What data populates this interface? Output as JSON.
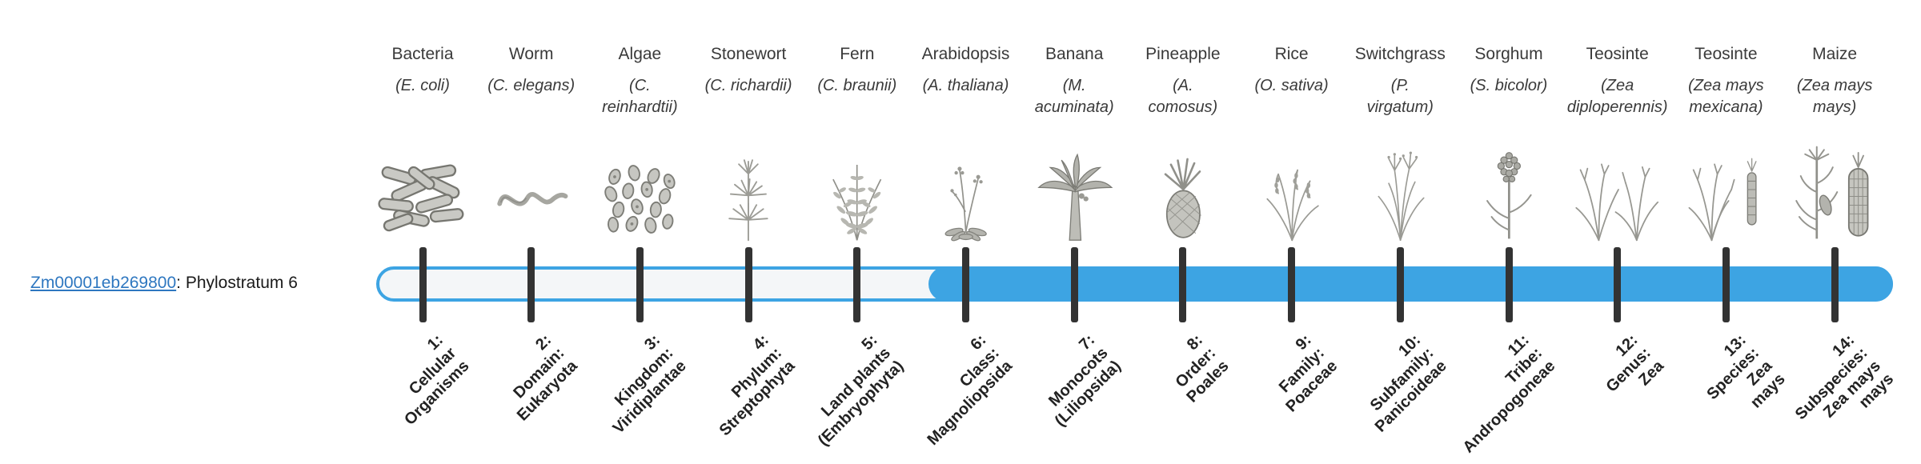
{
  "gene": {
    "id": "Zm00001eb269800",
    "label_suffix": ": Phylostratum 6",
    "phylostratum": 6
  },
  "colors": {
    "bar_fill": "#3da4e3",
    "bar_outline": "#3da4e3",
    "bar_track_bg": "#f4f6f8",
    "tick": "#333333",
    "link_blue": "#2e77c0",
    "name_text": "#3a3a3a",
    "label_text": "#222222"
  },
  "strata": [
    {
      "index": 1,
      "organism": "Bacteria",
      "scientific_lines": [
        "(E. coli)"
      ],
      "icon": "bacteria-illustration",
      "label_lines": [
        "1:",
        "Cellular",
        "Organisms"
      ]
    },
    {
      "index": 2,
      "organism": "Worm",
      "scientific_lines": [
        "(C. elegans)"
      ],
      "icon": "worm-illustration",
      "label_lines": [
        "2:",
        "Domain:",
        "Eukaryota"
      ]
    },
    {
      "index": 3,
      "organism": "Algae",
      "scientific_lines": [
        "(C.",
        "reinhardtii)"
      ],
      "icon": "algae-illustration",
      "label_lines": [
        "3:",
        "Kingdom:",
        "Viridiplantae"
      ]
    },
    {
      "index": 4,
      "organism": "Stonewort",
      "scientific_lines": [
        "(C. richardii)"
      ],
      "icon": "stonewort-illustration",
      "label_lines": [
        "4:",
        "Phylum:",
        "Streptophyta"
      ]
    },
    {
      "index": 5,
      "organism": "Fern",
      "scientific_lines": [
        "(C. braunii)"
      ],
      "icon": "fern-illustration",
      "label_lines": [
        "5:",
        "Land plants",
        "(Embryophyta)"
      ]
    },
    {
      "index": 6,
      "organism": "Arabidopsis",
      "scientific_lines": [
        "(A. thaliana)"
      ],
      "icon": "arabidopsis-illustration",
      "label_lines": [
        "6:",
        "Class:",
        "Magnoliopsida"
      ]
    },
    {
      "index": 7,
      "organism": "Banana",
      "scientific_lines": [
        "(M.",
        "acuminata)"
      ],
      "icon": "banana-illustration",
      "label_lines": [
        "7:",
        "Monocots",
        "(Liliopsida)"
      ]
    },
    {
      "index": 8,
      "organism": "Pineapple",
      "scientific_lines": [
        "(A.",
        "comosus)"
      ],
      "icon": "pineapple-illustration",
      "label_lines": [
        "8:",
        "Order:",
        "Poales"
      ]
    },
    {
      "index": 9,
      "organism": "Rice",
      "scientific_lines": [
        "(O. sativa)"
      ],
      "icon": "rice-illustration",
      "label_lines": [
        "9:",
        "Family:",
        "Poaceae"
      ]
    },
    {
      "index": 10,
      "organism": "Switchgrass",
      "scientific_lines": [
        "(P.",
        "virgatum)"
      ],
      "icon": "switchgrass-illustration",
      "label_lines": [
        "10:",
        "Subfamily:",
        "Panicoideae"
      ]
    },
    {
      "index": 11,
      "organism": "Sorghum",
      "scientific_lines": [
        "(S. bicolor)"
      ],
      "icon": "sorghum-illustration",
      "label_lines": [
        "11:",
        "Tribe:",
        "Andropogoneae"
      ]
    },
    {
      "index": 12,
      "organism": "Teosinte",
      "scientific_lines": [
        "(Zea",
        "diploperennis)"
      ],
      "icon": "teosinte-diploperennis-illustration",
      "label_lines": [
        "12:",
        "Genus:",
        "Zea"
      ]
    },
    {
      "index": 13,
      "organism": "Teosinte",
      "scientific_lines": [
        "(Zea mays",
        "mexicana)"
      ],
      "icon": "teosinte-mexicana-illustration",
      "label_lines": [
        "13:",
        "Species:",
        "Zea",
        "mays"
      ]
    },
    {
      "index": 14,
      "organism": "Maize",
      "scientific_lines": [
        "(Zea mays",
        "mays)"
      ],
      "icon": "maize-illustration",
      "label_lines": [
        "14:",
        "Subspecies:",
        "Zea mays",
        "mays"
      ]
    }
  ],
  "chart_data": {
    "type": "bar",
    "orientation": "horizontal",
    "title": "Zm00001eb269800: Phylostratum 6",
    "categories": [
      "1: Cellular Organisms",
      "2: Domain: Eukaryota",
      "3: Kingdom: Viridiplantae",
      "4: Phylum: Streptophyta",
      "5: Land plants (Embryophyta)",
      "6: Class: Magnoliopsida",
      "7: Monocots (Liliopsida)",
      "8: Order: Poales",
      "9: Family: Poaceae",
      "10: Subfamily: Panicoideae",
      "11: Tribe: Andropogoneae",
      "12: Genus: Zea",
      "13: Species: Zea mays",
      "14: Subspecies: Zea mays mays"
    ],
    "series": [
      {
        "name": "phylostratum bar filled (gene traced back to stratum 6)",
        "values": [
          0,
          0,
          0,
          0,
          0,
          1,
          1,
          1,
          1,
          1,
          1,
          1,
          1,
          1
        ]
      }
    ],
    "representative_organisms": [
      "Bacteria (E. coli)",
      "Worm (C. elegans)",
      "Algae (C. reinhardtii)",
      "Stonewort (C. richardii)",
      "Fern (C. braunii)",
      "Arabidopsis (A. thaliana)",
      "Banana (M. acuminata)",
      "Pineapple (A. comosus)",
      "Rice (O. sativa)",
      "Switchgrass (P. virgatum)",
      "Sorghum (S. bicolor)",
      "Teosinte (Zea diploperennis)",
      "Teosinte (Zea mays mexicana)",
      "Maize (Zea mays mays)"
    ],
    "highlight_start_category": "6: Class: Magnoliopsida",
    "legend": "none",
    "grid": false
  }
}
